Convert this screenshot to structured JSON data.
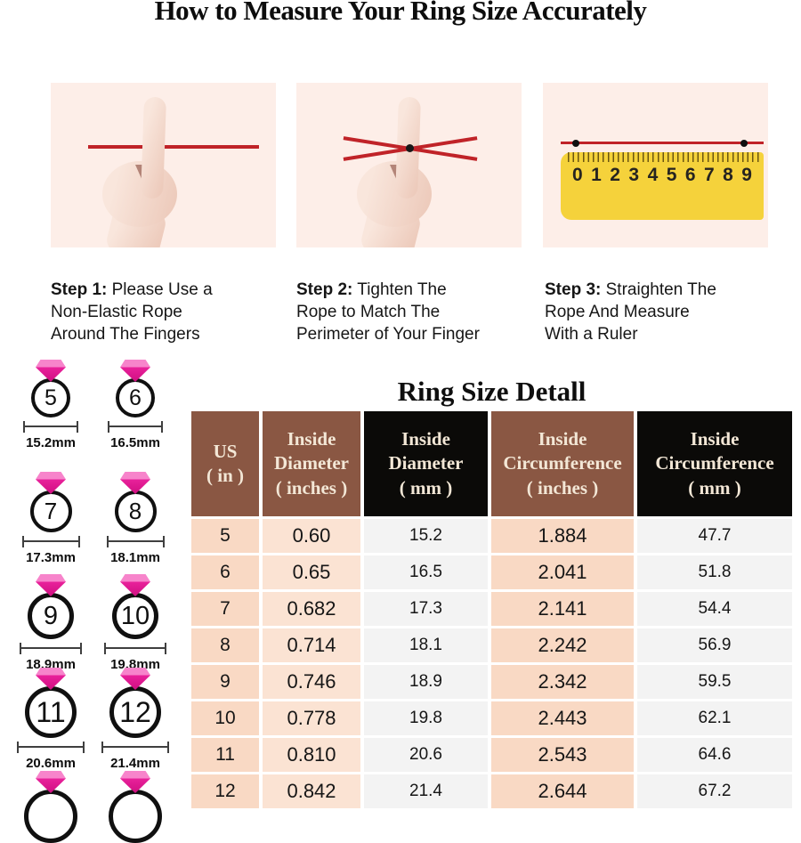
{
  "title": "How to Measure Your Ring Size Accurately",
  "steps": [
    {
      "label": "Step 1:",
      "text": " Please Use a\nNon-Elastic Rope\nAround The Fingers"
    },
    {
      "label": "Step 2:",
      "text": " Tighten The\nRope to Match The\nPerimeter of Your Finger"
    },
    {
      "label": "Step 3:",
      "text": " Straighten The\nRope And Measure\nWith a Ruler"
    }
  ],
  "ruler": {
    "numbers": [
      "0",
      "1",
      "2",
      "3",
      "4",
      "5",
      "6",
      "7",
      "8",
      "9"
    ]
  },
  "section_title": "Ring Size Detall",
  "ring_chart": {
    "rings": [
      {
        "size": "5",
        "diameter_label": "15.2mm"
      },
      {
        "size": "6",
        "diameter_label": "16.5mm"
      },
      {
        "size": "7",
        "diameter_label": "17.3mm"
      },
      {
        "size": "8",
        "diameter_label": "18.1mm"
      },
      {
        "size": "9",
        "diameter_label": "18.9mm"
      },
      {
        "size": "10",
        "diameter_label": "19.8mm"
      },
      {
        "size": "11",
        "diameter_label": "20.6mm"
      },
      {
        "size": "12",
        "diameter_label": "21.4mm"
      },
      {
        "size": "",
        "diameter_label": ""
      },
      {
        "size": "",
        "diameter_label": ""
      }
    ]
  },
  "table": {
    "columns": [
      {
        "label": "US\n( in )",
        "dark": false
      },
      {
        "label": "Inside\nDiameter\n( inches )",
        "dark": false
      },
      {
        "label": "Inside\nDiameter\n( mm )",
        "dark": true
      },
      {
        "label": "Inside\nCircumference\n( inches )",
        "dark": false
      },
      {
        "label": "Inside\nCircumference\n( mm )",
        "dark": true
      }
    ],
    "rows": [
      [
        "5",
        "0.60",
        "15.2",
        "1.884",
        "47.7"
      ],
      [
        "6",
        "0.65",
        "16.5",
        "2.041",
        "51.8"
      ],
      [
        "7",
        "0.682",
        "17.3",
        "2.141",
        "54.4"
      ],
      [
        "8",
        "0.714",
        "18.1",
        "2.242",
        "56.9"
      ],
      [
        "9",
        "0.746",
        "18.9",
        "2.342",
        "59.5"
      ],
      [
        "10",
        "0.778",
        "19.8",
        "2.443",
        "62.1"
      ],
      [
        "11",
        "0.810",
        "20.6",
        "2.543",
        "64.6"
      ],
      [
        "12",
        "0.842",
        "21.4",
        "2.644",
        "67.2"
      ]
    ]
  },
  "colors": {
    "header_brown": "#8a5743",
    "header_black": "#0b0a08",
    "header_text": "#f3e7d6",
    "cell_peach": "#f9d9c4",
    "cell_peach_light": "#fbe3d3",
    "cell_gray": "#f3f3f3",
    "rope_red": "#c02328",
    "ruler_yellow": "#f5d23b",
    "diamond_pink": "#e9219b",
    "photo_background": "#fdeee8"
  }
}
